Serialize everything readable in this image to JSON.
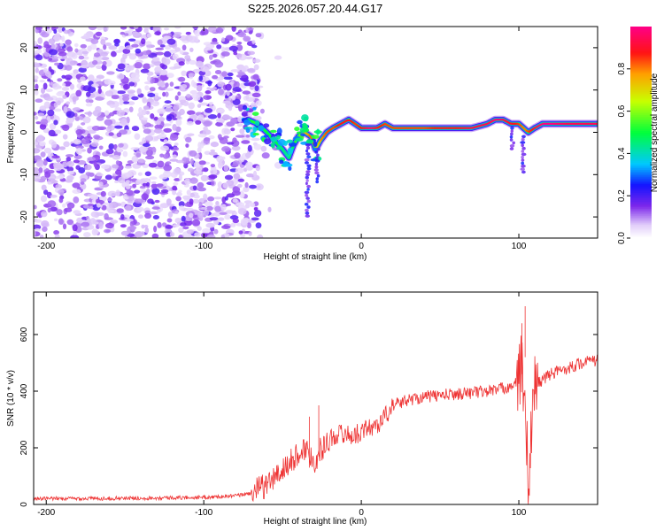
{
  "title": "S225.2026.057.20.44.G17",
  "chart_data": [
    {
      "type": "heatmap",
      "xlabel": "Height of straight line (km)",
      "ylabel": "Frequency (Hz)",
      "xlim": [
        -208,
        150
      ],
      "ylim": [
        -25,
        25
      ],
      "xticks": [
        -200,
        -100,
        0,
        100
      ],
      "yticks": [
        -20,
        -10,
        0,
        10,
        20
      ],
      "noise_region_x": [
        -208,
        -65
      ],
      "noise_scatter_y": [
        -25,
        25
      ],
      "ridge": [
        {
          "x": -72,
          "y": 3,
          "a": 0.5
        },
        {
          "x": -66,
          "y": 2,
          "a": 0.55
        },
        {
          "x": -60,
          "y": 0,
          "a": 0.5
        },
        {
          "x": -55,
          "y": -2,
          "a": 0.5
        },
        {
          "x": -50,
          "y": -4,
          "a": 0.45
        },
        {
          "x": -46,
          "y": -6,
          "a": 0.4
        },
        {
          "x": -43,
          "y": -3,
          "a": 0.5
        },
        {
          "x": -40,
          "y": -1,
          "a": 0.6
        },
        {
          "x": -36,
          "y": 0,
          "a": 0.75
        },
        {
          "x": -32,
          "y": -1,
          "a": 0.85
        },
        {
          "x": -29,
          "y": -4,
          "a": 0.7
        },
        {
          "x": -26,
          "y": -2,
          "a": 0.8
        },
        {
          "x": -22,
          "y": 0,
          "a": 0.85
        },
        {
          "x": -18,
          "y": 1,
          "a": 0.85
        },
        {
          "x": -13,
          "y": 2,
          "a": 0.9
        },
        {
          "x": -8,
          "y": 3,
          "a": 0.9
        },
        {
          "x": -4,
          "y": 2,
          "a": 0.85
        },
        {
          "x": 0,
          "y": 1,
          "a": 0.9
        },
        {
          "x": 5,
          "y": 1,
          "a": 1.0
        },
        {
          "x": 10,
          "y": 1,
          "a": 0.9
        },
        {
          "x": 15,
          "y": 2,
          "a": 0.85
        },
        {
          "x": 20,
          "y": 1,
          "a": 0.85
        },
        {
          "x": 30,
          "y": 1,
          "a": 0.85
        },
        {
          "x": 40,
          "y": 1,
          "a": 0.85
        },
        {
          "x": 50,
          "y": 1,
          "a": 0.9
        },
        {
          "x": 60,
          "y": 1,
          "a": 0.9
        },
        {
          "x": 70,
          "y": 1,
          "a": 0.95
        },
        {
          "x": 80,
          "y": 2,
          "a": 0.95
        },
        {
          "x": 85,
          "y": 3,
          "a": 1.0
        },
        {
          "x": 90,
          "y": 3,
          "a": 0.95
        },
        {
          "x": 95,
          "y": 2,
          "a": 0.9
        },
        {
          "x": 100,
          "y": 2,
          "a": 0.85
        },
        {
          "x": 103,
          "y": 1,
          "a": 0.8
        },
        {
          "x": 106,
          "y": 0,
          "a": 0.85
        },
        {
          "x": 110,
          "y": 1,
          "a": 0.95
        },
        {
          "x": 115,
          "y": 2,
          "a": 1.0
        },
        {
          "x": 120,
          "y": 2,
          "a": 1.0
        },
        {
          "x": 130,
          "y": 2,
          "a": 0.95
        },
        {
          "x": 140,
          "y": 2,
          "a": 0.95
        },
        {
          "x": 150,
          "y": 2,
          "a": 0.95
        }
      ],
      "colorbar": {
        "label": "Normalized spectral amplitude",
        "range": [
          0,
          1
        ],
        "ticks": [
          "0.0",
          "0.2",
          "0.4",
          "0.6",
          "0.8"
        ],
        "tick_values": [
          0.0,
          0.2,
          0.4,
          0.6,
          0.8
        ]
      }
    },
    {
      "type": "line",
      "xlabel": "Height of straight line (km)",
      "ylabel": "SNR (10 * v/v)",
      "xlim": [
        -208,
        150
      ],
      "ylim": [
        0,
        750
      ],
      "xticks": [
        -200,
        -100,
        0,
        100
      ],
      "yticks": [
        0,
        200,
        400,
        600
      ],
      "color": "#ee3333",
      "series": [
        {
          "name": "SNR",
          "x": [
            -208,
            -150,
            -100,
            -80,
            -70,
            -60,
            -50,
            -40,
            -35,
            -30,
            -25,
            -20,
            -15,
            -10,
            -5,
            0,
            5,
            10,
            15,
            20,
            30,
            40,
            50,
            60,
            70,
            80,
            90,
            95,
            100,
            102,
            104,
            106,
            108,
            110,
            115,
            120,
            130,
            140,
            150
          ],
          "y": [
            20,
            22,
            25,
            30,
            40,
            70,
            120,
            180,
            200,
            150,
            200,
            230,
            250,
            250,
            240,
            260,
            270,
            280,
            310,
            350,
            370,
            380,
            385,
            390,
            395,
            400,
            410,
            420,
            430,
            500,
            300,
            100,
            250,
            420,
            440,
            460,
            480,
            500,
            510
          ]
        }
      ],
      "annotations": [
        {
          "x": -33,
          "y": 310
        },
        {
          "x": -27,
          "y": 350
        },
        {
          "x": 102,
          "y": 640
        },
        {
          "x": 104,
          "y": 700
        },
        {
          "x": 106,
          "y": 30
        }
      ]
    }
  ]
}
